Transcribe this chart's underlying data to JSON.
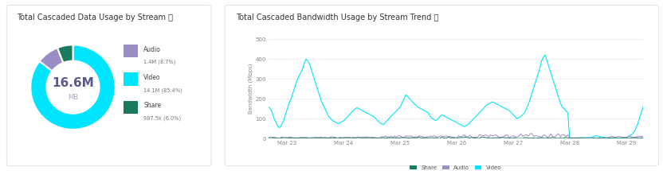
{
  "donut_title": "Total Cascaded Data Usage by Stream ⓘ",
  "donut_center_value": "16.6M",
  "donut_center_unit": "MB",
  "donut_slices": [
    14.13,
    1.4,
    0.9875
  ],
  "donut_colors": [
    "#00e5ff",
    "#9b8ec4",
    "#1a7a5e"
  ],
  "donut_labels": [
    "Video",
    "Audio",
    "Share"
  ],
  "legend_labels": [
    "Audio",
    "Video",
    "Share"
  ],
  "legend_values": [
    "1.4M (8.7%)",
    "14.1M (85.4%)",
    "987.5k (6.0%)"
  ],
  "legend_colors": [
    "#9b8ec4",
    "#00e5ff",
    "#1a7a5e"
  ],
  "line_title": "Total Cascaded Bandwidth Usage by Stream Trend ⓘ",
  "x_labels": [
    "Mar 23",
    "Mar 24",
    "Mar 25",
    "Mar 26",
    "Mar 27",
    "Mar 28",
    "Mar 29"
  ],
  "y_label": "Bandwidth (Mbps)",
  "y_max": 500,
  "y_ticks": [
    0,
    100,
    200,
    300,
    400,
    500
  ],
  "bg_color": "#ffffff",
  "grid_color": "#e8e8e8",
  "video_color": "#00e5ff",
  "audio_color": "#9b8ec4",
  "share_color": "#1a7a5e",
  "title_fontsize": 7,
  "label_fontsize": 6
}
